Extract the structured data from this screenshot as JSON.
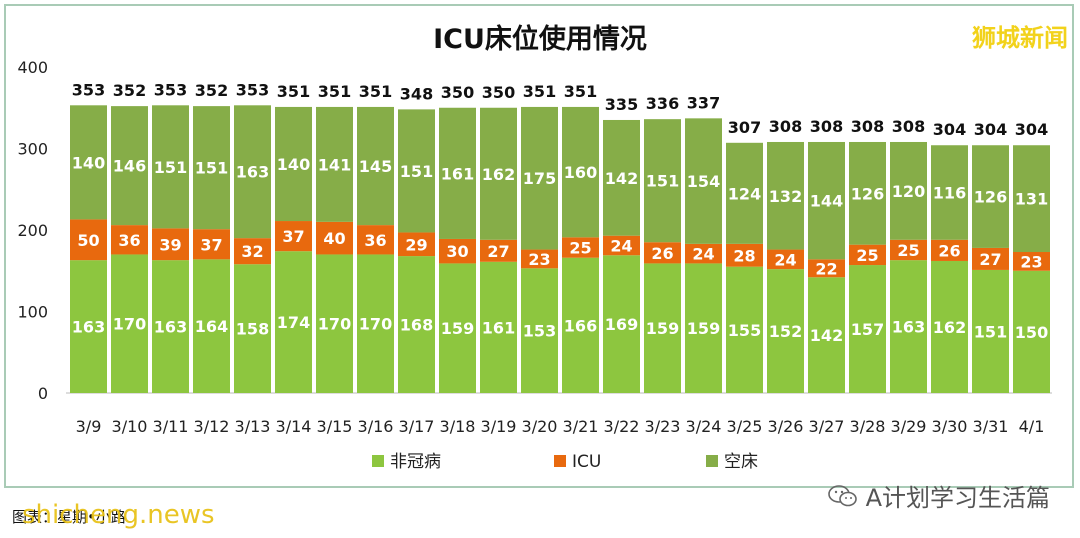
{
  "brand_overlay": "狮城新闻",
  "credit": "图表：星期•小路",
  "watermark": "shicheng.news",
  "wechat_account": "A计划学习生活篇",
  "colors": {
    "non_covid": "#8dc63f",
    "icu": "#e8690e",
    "empty": "#86ad48"
  },
  "icons": {
    "wechat": "wechat-icon"
  },
  "chart_data": {
    "type": "bar",
    "stacked": true,
    "title": "ICU床位使用情况",
    "xlabel": "",
    "ylabel": "",
    "ylim": [
      0,
      400
    ],
    "yticks": [
      0,
      100,
      200,
      300,
      400
    ],
    "legend_position": "bottom",
    "grid": false,
    "categories": [
      "3/9",
      "3/10",
      "3/11",
      "3/12",
      "3/13",
      "3/14",
      "3/15",
      "3/16",
      "3/17",
      "3/18",
      "3/19",
      "3/20",
      "3/21",
      "3/22",
      "3/23",
      "3/24",
      "3/25",
      "3/26",
      "3/27",
      "3/28",
      "3/29",
      "3/30",
      "3/31",
      "4/1"
    ],
    "totals": [
      353,
      352,
      353,
      352,
      353,
      351,
      351,
      351,
      348,
      350,
      350,
      351,
      351,
      335,
      336,
      337,
      307,
      308,
      308,
      308,
      308,
      304,
      304,
      304
    ],
    "series": [
      {
        "name": "非冠病",
        "color": "#8dc63f",
        "values": [
          163,
          170,
          163,
          164,
          158,
          174,
          170,
          170,
          168,
          159,
          161,
          153,
          166,
          169,
          159,
          159,
          155,
          152,
          142,
          157,
          163,
          162,
          151,
          150
        ]
      },
      {
        "name": "ICU",
        "color": "#e8690e",
        "values": [
          50,
          36,
          39,
          37,
          32,
          37,
          40,
          36,
          29,
          30,
          27,
          23,
          25,
          24,
          26,
          24,
          28,
          24,
          22,
          25,
          25,
          26,
          27,
          23
        ]
      },
      {
        "name": "空床",
        "color": "#86ad48",
        "values": [
          140,
          146,
          151,
          151,
          163,
          140,
          141,
          145,
          151,
          161,
          162,
          175,
          160,
          142,
          151,
          154,
          124,
          132,
          144,
          126,
          120,
          116,
          126,
          131
        ]
      }
    ]
  }
}
